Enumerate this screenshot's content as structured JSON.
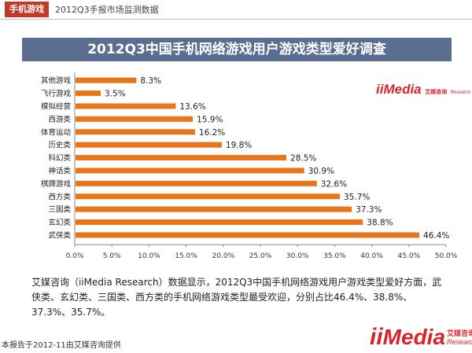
{
  "header": {
    "tag": "手机游戏",
    "subtitle": "2012Q3手报市场监测数据"
  },
  "logo": {
    "ii": "ii",
    "media": "Media",
    "cn": "艾媒咨询",
    "en": "Research"
  },
  "chart_data": {
    "type": "bar",
    "orientation": "horizontal",
    "title": "2012Q3中国手机网络游戏用户游戏类型爱好调查",
    "categories": [
      "其他游戏",
      "飞行游戏",
      "模拟经营",
      "西游类",
      "体育运动",
      "历史类",
      "科幻类",
      "神话类",
      "棋牌游戏",
      "西方类",
      "三国类",
      "玄幻类",
      "武侠类"
    ],
    "values": [
      8.3,
      3.5,
      13.6,
      15.9,
      16.2,
      19.8,
      28.5,
      30.9,
      32.6,
      35.7,
      37.3,
      38.8,
      46.4
    ],
    "value_labels": [
      "8.3%",
      "3.5%",
      "13.6%",
      "15.9%",
      "16.2%",
      "19.8%",
      "28.5%",
      "30.9%",
      "32.6%",
      "35.7%",
      "37.3%",
      "38.8%",
      "46.4%"
    ],
    "xlim": [
      0,
      50
    ],
    "ticks": [
      "0.0%",
      "5.0%",
      "10.0%",
      "15.0%",
      "20.0%",
      "25.0%",
      "30.0%",
      "35.0%",
      "40.0%",
      "45.0%",
      "50.0%"
    ],
    "grid": false,
    "bar_color": "#e8751a",
    "xlabel": "",
    "ylabel": ""
  },
  "description": "艾媒咨询（iiMedia Research）数据显示，2012Q3中国手机网络游戏用户游戏类型爱好方面，武侠类、玄幻类、三国类、西方类的手机网络游戏类型最受欢迎，分别占比46.4%、38.8%、37.3%、35.7%。",
  "footer": "本报告于2012-11由艾媒咨询提供",
  "colors": {
    "accent": "#c0392b",
    "banner": "#5b6e91",
    "bar": "#e8751a",
    "logo": "#d9232a"
  }
}
